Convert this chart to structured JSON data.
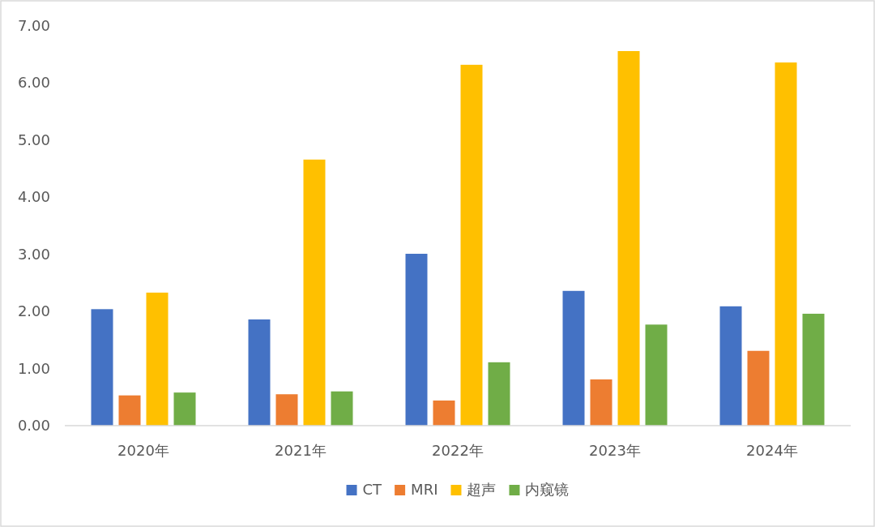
{
  "chart_data": {
    "type": "bar",
    "categories": [
      "2020年",
      "2021年",
      "2022年",
      "2023年",
      "2024年"
    ],
    "series": [
      {
        "name": "CT",
        "color": "#4472c4",
        "values": [
          2.04,
          1.86,
          3.01,
          2.36,
          2.09
        ]
      },
      {
        "name": "MRI",
        "color": "#ed7d31",
        "values": [
          0.53,
          0.55,
          0.44,
          0.81,
          1.31
        ]
      },
      {
        "name": "超声",
        "color": "#ffc000",
        "values": [
          2.33,
          4.66,
          6.32,
          6.56,
          6.36
        ]
      },
      {
        "name": "内窥镜",
        "color": "#70ad47",
        "values": [
          0.58,
          0.6,
          1.11,
          1.77,
          1.96
        ]
      }
    ],
    "ylim": [
      0,
      7
    ],
    "yticks": [
      {
        "value": 0,
        "label": "0.00"
      },
      {
        "value": 1,
        "label": "1.00"
      },
      {
        "value": 2,
        "label": "2.00"
      },
      {
        "value": 3,
        "label": "3.00"
      },
      {
        "value": 4,
        "label": "4.00"
      },
      {
        "value": 5,
        "label": "5.00"
      },
      {
        "value": 6,
        "label": "6.00"
      },
      {
        "value": 7,
        "label": "7.00"
      }
    ],
    "grid": false,
    "legend": "bottom"
  }
}
